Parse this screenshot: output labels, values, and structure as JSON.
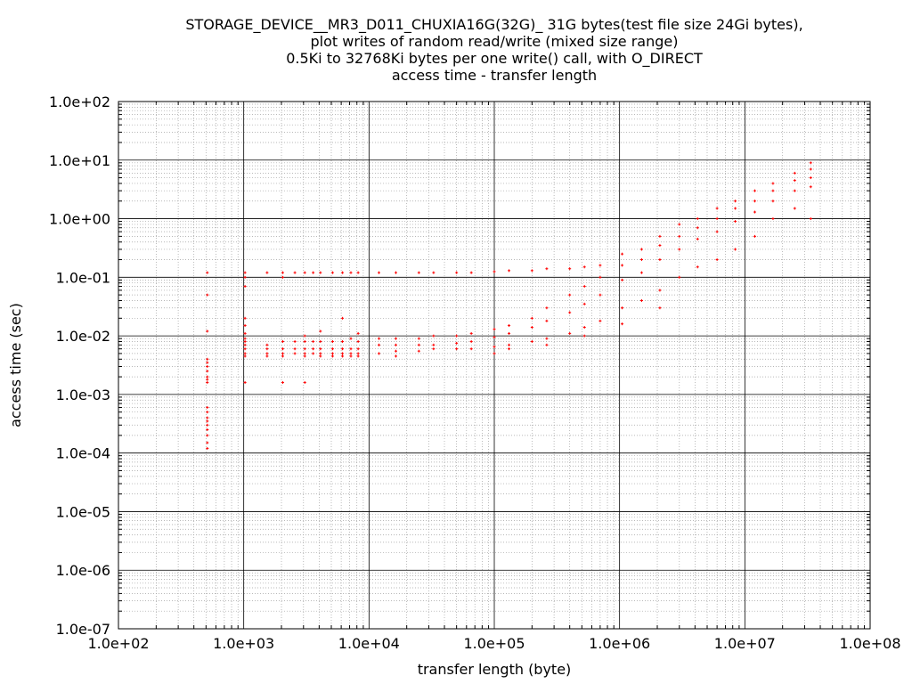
{
  "chart_data": {
    "type": "scatter",
    "title": [
      "STORAGE_DEVICE__MR3_D011_CHUXIA16G(32G)_ 31G bytes(test file size 24Gi bytes),",
      "plot writes of random read/write (mixed size range)",
      "0.5Ki to 32768Ki bytes per one write() call, with O_DIRECT",
      "access time - transfer length"
    ],
    "xlabel": "transfer length (byte)",
    "ylabel": "access time (sec)",
    "x_scale": "log",
    "y_scale": "log",
    "xlim": [
      100,
      100000000
    ],
    "ylim": [
      1e-07,
      100
    ],
    "x_ticks": [
      {
        "value": 100,
        "label": "1.0e+02"
      },
      {
        "value": 1000,
        "label": "1.0e+03"
      },
      {
        "value": 10000,
        "label": "1.0e+04"
      },
      {
        "value": 100000,
        "label": "1.0e+05"
      },
      {
        "value": 1000000,
        "label": "1.0e+06"
      },
      {
        "value": 10000000,
        "label": "1.0e+07"
      },
      {
        "value": 100000000,
        "label": "1.0e+08"
      }
    ],
    "y_ticks": [
      {
        "value": 1e-07,
        "label": "1.0e-07"
      },
      {
        "value": 1e-06,
        "label": "1.0e-06"
      },
      {
        "value": 1e-05,
        "label": "1.0e-05"
      },
      {
        "value": 0.0001,
        "label": "1.0e-04"
      },
      {
        "value": 0.001,
        "label": "1.0e-03"
      },
      {
        "value": 0.01,
        "label": "1.0e-02"
      },
      {
        "value": 0.1,
        "label": "1.0e-01"
      },
      {
        "value": 1,
        "label": "1.0e+00"
      },
      {
        "value": 10,
        "label": "1.0e+01"
      },
      {
        "value": 100,
        "label": "1.0e+02"
      }
    ],
    "grid": true,
    "minor_grid": true,
    "marker_color": "#ff0000",
    "series": [
      {
        "points": [
          [
            512,
            0.12
          ],
          [
            512,
            0.05
          ],
          [
            512,
            0.012
          ],
          [
            512,
            0.004
          ],
          [
            512,
            0.0035
          ],
          [
            512,
            0.003
          ],
          [
            512,
            0.0025
          ],
          [
            512,
            0.002
          ],
          [
            512,
            0.0018
          ],
          [
            512,
            0.0016
          ],
          [
            512,
            0.0006
          ],
          [
            512,
            0.0005
          ],
          [
            512,
            0.0004
          ],
          [
            512,
            0.00035
          ],
          [
            512,
            0.0003
          ],
          [
            512,
            0.00025
          ],
          [
            512,
            0.0002
          ],
          [
            512,
            0.00015
          ],
          [
            512,
            0.00012
          ],
          [
            1024,
            0.12
          ],
          [
            1024,
            0.1
          ],
          [
            1024,
            0.07
          ],
          [
            1024,
            0.02
          ],
          [
            1024,
            0.015
          ],
          [
            1024,
            0.011
          ],
          [
            1024,
            0.009
          ],
          [
            1024,
            0.008
          ],
          [
            1024,
            0.007
          ],
          [
            1024,
            0.006
          ],
          [
            1024,
            0.005
          ],
          [
            1024,
            0.0045
          ],
          [
            1024,
            0.0016
          ],
          [
            1536,
            0.12
          ],
          [
            1536,
            0.007
          ],
          [
            1536,
            0.006
          ],
          [
            1536,
            0.005
          ],
          [
            1536,
            0.0045
          ],
          [
            2048,
            0.12
          ],
          [
            2048,
            0.1
          ],
          [
            2048,
            0.008
          ],
          [
            2048,
            0.006
          ],
          [
            2048,
            0.005
          ],
          [
            2048,
            0.0045
          ],
          [
            2048,
            0.0016
          ],
          [
            2560,
            0.12
          ],
          [
            2560,
            0.008
          ],
          [
            2560,
            0.006
          ],
          [
            2560,
            0.005
          ],
          [
            3072,
            0.12
          ],
          [
            3072,
            0.01
          ],
          [
            3072,
            0.008
          ],
          [
            3072,
            0.006
          ],
          [
            3072,
            0.005
          ],
          [
            3072,
            0.0045
          ],
          [
            3072,
            0.0016
          ],
          [
            3584,
            0.12
          ],
          [
            3584,
            0.008
          ],
          [
            3584,
            0.006
          ],
          [
            3584,
            0.005
          ],
          [
            4096,
            0.12
          ],
          [
            4096,
            0.012
          ],
          [
            4096,
            0.008
          ],
          [
            4096,
            0.006
          ],
          [
            4096,
            0.005
          ],
          [
            4096,
            0.0045
          ],
          [
            5120,
            0.12
          ],
          [
            5120,
            0.008
          ],
          [
            5120,
            0.006
          ],
          [
            5120,
            0.005
          ],
          [
            5120,
            0.0045
          ],
          [
            6144,
            0.12
          ],
          [
            6144,
            0.02
          ],
          [
            6144,
            0.008
          ],
          [
            6144,
            0.006
          ],
          [
            6144,
            0.005
          ],
          [
            6144,
            0.0045
          ],
          [
            7168,
            0.12
          ],
          [
            7168,
            0.009
          ],
          [
            7168,
            0.006
          ],
          [
            7168,
            0.005
          ],
          [
            7168,
            0.0045
          ],
          [
            8192,
            0.12
          ],
          [
            8192,
            0.011
          ],
          [
            8192,
            0.008
          ],
          [
            8192,
            0.006
          ],
          [
            8192,
            0.005
          ],
          [
            8192,
            0.0045
          ],
          [
            12000,
            0.12
          ],
          [
            12000,
            0.009
          ],
          [
            12000,
            0.007
          ],
          [
            12000,
            0.005
          ],
          [
            16384,
            0.12
          ],
          [
            16384,
            0.009
          ],
          [
            16384,
            0.007
          ],
          [
            16384,
            0.0055
          ],
          [
            16384,
            0.0045
          ],
          [
            25000,
            0.12
          ],
          [
            25000,
            0.009
          ],
          [
            25000,
            0.007
          ],
          [
            25000,
            0.0055
          ],
          [
            32768,
            0.12
          ],
          [
            32768,
            0.01
          ],
          [
            32768,
            0.007
          ],
          [
            32768,
            0.006
          ],
          [
            50000,
            0.12
          ],
          [
            50000,
            0.01
          ],
          [
            50000,
            0.0075
          ],
          [
            50000,
            0.006
          ],
          [
            65536,
            0.12
          ],
          [
            65536,
            0.011
          ],
          [
            65536,
            0.008
          ],
          [
            65536,
            0.006
          ],
          [
            100000,
            0.125
          ],
          [
            100000,
            0.013
          ],
          [
            100000,
            0.0095
          ],
          [
            100000,
            0.0065
          ],
          [
            100000,
            0.005
          ],
          [
            131072,
            0.13
          ],
          [
            131072,
            0.015
          ],
          [
            131072,
            0.011
          ],
          [
            131072,
            0.007
          ],
          [
            131072,
            0.006
          ],
          [
            200000,
            0.13
          ],
          [
            200000,
            0.02
          ],
          [
            200000,
            0.014
          ],
          [
            200000,
            0.008
          ],
          [
            262144,
            0.14
          ],
          [
            262144,
            0.03
          ],
          [
            262144,
            0.018
          ],
          [
            262144,
            0.009
          ],
          [
            262144,
            0.007
          ],
          [
            400000,
            0.14
          ],
          [
            400000,
            0.05
          ],
          [
            400000,
            0.025
          ],
          [
            400000,
            0.011
          ],
          [
            524288,
            0.15
          ],
          [
            524288,
            0.07
          ],
          [
            524288,
            0.035
          ],
          [
            524288,
            0.014
          ],
          [
            524288,
            0.01
          ],
          [
            700000,
            0.16
          ],
          [
            700000,
            0.1
          ],
          [
            700000,
            0.05
          ],
          [
            700000,
            0.018
          ],
          [
            1048576,
            0.25
          ],
          [
            1048576,
            0.16
          ],
          [
            1048576,
            0.09
          ],
          [
            1048576,
            0.03
          ],
          [
            1048576,
            0.016
          ],
          [
            1500000,
            0.3
          ],
          [
            1500000,
            0.2
          ],
          [
            1500000,
            0.12
          ],
          [
            1500000,
            0.04
          ],
          [
            2097152,
            0.5
          ],
          [
            2097152,
            0.35
          ],
          [
            2097152,
            0.2
          ],
          [
            2097152,
            0.06
          ],
          [
            2097152,
            0.03
          ],
          [
            3000000,
            0.8
          ],
          [
            3000000,
            0.5
          ],
          [
            3000000,
            0.3
          ],
          [
            3000000,
            0.1
          ],
          [
            4194304,
            1.0
          ],
          [
            4194304,
            0.7
          ],
          [
            4194304,
            0.45
          ],
          [
            4194304,
            0.15
          ],
          [
            6000000,
            1.5
          ],
          [
            6000000,
            1.0
          ],
          [
            6000000,
            0.6
          ],
          [
            6000000,
            0.2
          ],
          [
            8388608,
            2.0
          ],
          [
            8388608,
            1.5
          ],
          [
            8388608,
            0.9
          ],
          [
            8388608,
            0.3
          ],
          [
            12000000,
            3.0
          ],
          [
            12000000,
            2.0
          ],
          [
            12000000,
            1.3
          ],
          [
            12000000,
            0.5
          ],
          [
            16777216,
            4.0
          ],
          [
            16777216,
            3.0
          ],
          [
            16777216,
            2.0
          ],
          [
            16777216,
            1.0
          ],
          [
            25000000,
            6.0
          ],
          [
            25000000,
            4.5
          ],
          [
            25000000,
            3.0
          ],
          [
            25000000,
            1.5
          ],
          [
            33554432,
            9.0
          ],
          [
            33554432,
            7.0
          ],
          [
            33554432,
            5.0
          ],
          [
            33554432,
            3.5
          ],
          [
            33554432,
            1.0
          ]
        ]
      }
    ]
  }
}
